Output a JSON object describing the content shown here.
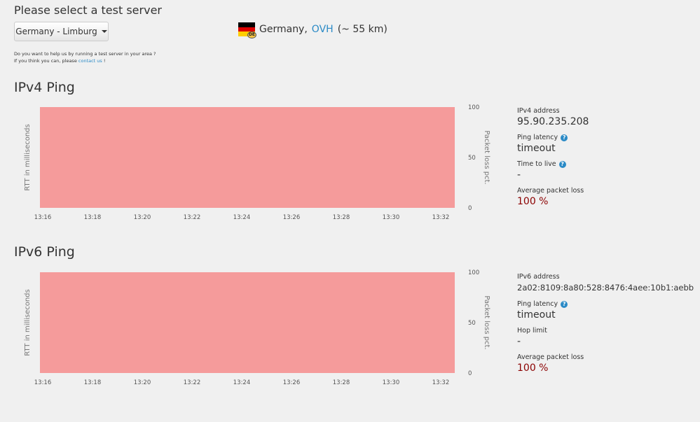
{
  "header": {
    "title": "Please select a test server",
    "server_select": {
      "value": "Germany - Limburg"
    },
    "location": {
      "country": "Germany,",
      "provider": "OVH",
      "distance": "(~ 55 km)",
      "flag_badge": "DE",
      "flag_colors": [
        "#000000",
        "#dd0000",
        "#ffce00"
      ]
    },
    "help": {
      "line1": "Do you want to help us by running a test server in your area ?",
      "line2_prefix": "If you think you can, please",
      "line2_link": "contact us",
      "line2_suffix": "!"
    }
  },
  "ipv4": {
    "title": "IPv4 Ping",
    "info": {
      "address_label": "IPv4 address",
      "address_value": "95.90.235.208",
      "latency_label": "Ping latency",
      "latency_value": "timeout",
      "ttl_label": "Time to live",
      "ttl_value": "-",
      "loss_label": "Average packet loss",
      "loss_value": "100 %"
    }
  },
  "ipv6": {
    "title": "IPv6 Ping",
    "info": {
      "address_label": "IPv6 address",
      "address_value": "2a02:8109:8a80:528:8476:4aee:10b1:aebb",
      "latency_label": "Ping latency",
      "latency_value": "timeout",
      "hop_label": "Hop limit",
      "hop_value": "-",
      "loss_label": "Average packet loss",
      "loss_value": "100 %"
    }
  },
  "chart_data": [
    {
      "type": "area",
      "title": "IPv4 Ping",
      "ylabel": "RTT in milliseconds",
      "y2label": "Packet loss pct.",
      "x": [
        "13:16",
        "13:18",
        "13:20",
        "13:22",
        "13:24",
        "13:26",
        "13:28",
        "13:30",
        "13:32"
      ],
      "y2_ticks": [
        "0",
        "50",
        "100"
      ],
      "y2lim": [
        0,
        100
      ],
      "series": [
        {
          "name": "Packet loss",
          "axis": "right",
          "color": "#f59b9b",
          "values": [
            100,
            100,
            100,
            100,
            100,
            100,
            100,
            100,
            100
          ]
        }
      ]
    },
    {
      "type": "area",
      "title": "IPv6 Ping",
      "ylabel": "RTT in milliseconds",
      "y2label": "Packet loss pct.",
      "x": [
        "13:16",
        "13:18",
        "13:20",
        "13:22",
        "13:24",
        "13:26",
        "13:28",
        "13:30",
        "13:32"
      ],
      "y2_ticks": [
        "0",
        "50",
        "100"
      ],
      "y2lim": [
        0,
        100
      ],
      "series": [
        {
          "name": "Packet loss",
          "axis": "right",
          "color": "#f59b9b",
          "values": [
            100,
            100,
            100,
            100,
            100,
            100,
            100,
            100,
            100
          ]
        }
      ]
    }
  ]
}
